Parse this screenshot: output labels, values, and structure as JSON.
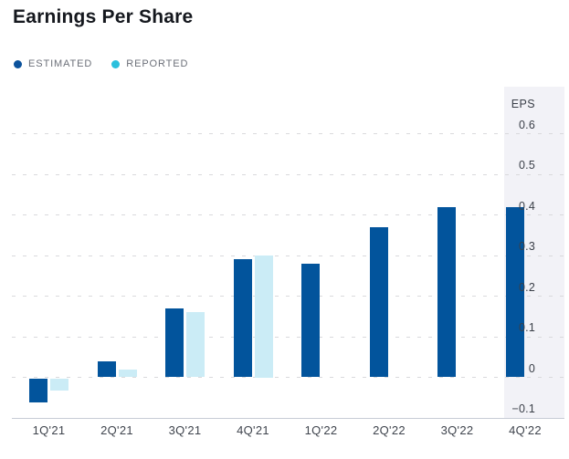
{
  "title": "Earnings Per Share",
  "legend": [
    {
      "label": "ESTIMATED",
      "color": "#0B529C"
    },
    {
      "label": "REPORTED",
      "color": "#2BC0DD"
    }
  ],
  "chart_data": {
    "type": "bar",
    "title": "Earnings Per Share",
    "ylabel": "EPS",
    "categories": [
      "1Q'21",
      "2Q'21",
      "3Q'21",
      "4Q'21",
      "1Q'22",
      "2Q'22",
      "3Q'22",
      "4Q'22"
    ],
    "series": [
      {
        "name": "ESTIMATED",
        "color": "#02549C",
        "values": [
          -0.06,
          0.04,
          0.17,
          0.29,
          0.28,
          0.37,
          0.42,
          0.42
        ]
      },
      {
        "name": "REPORTED",
        "color": "#CBECF6",
        "values": [
          -0.03,
          0.02,
          0.16,
          0.3,
          null,
          null,
          null,
          null
        ]
      }
    ],
    "yticks": [
      {
        "v": 0.6,
        "label": "0.6"
      },
      {
        "v": 0.5,
        "label": "0.5"
      },
      {
        "v": 0.4,
        "label": "0.4"
      },
      {
        "v": 0.3,
        "label": "0.3"
      },
      {
        "v": 0.2,
        "label": "0.2"
      },
      {
        "v": 0.1,
        "label": "0.1"
      },
      {
        "v": 0,
        "label": "0"
      },
      {
        "v": -0.1,
        "label": "−0.1",
        "axis": true
      }
    ],
    "ylim": [
      -0.1,
      0.72
    ],
    "grid": "horizontal-dotted",
    "axis_side": "right",
    "legend_position": "top-left",
    "highlighted_category": "4Q'22",
    "highlight_color": "#F2F2F7"
  }
}
